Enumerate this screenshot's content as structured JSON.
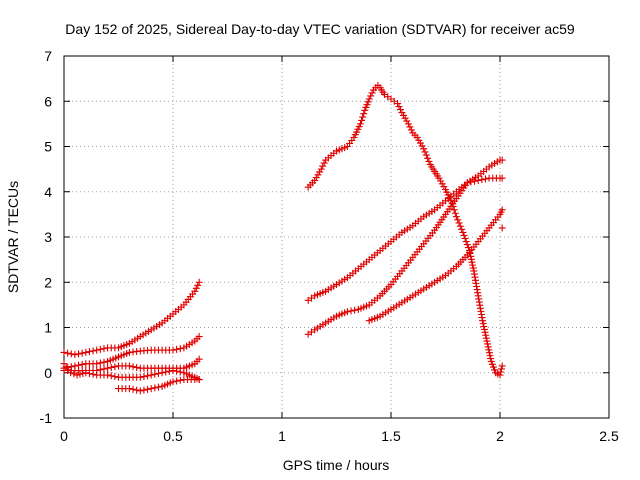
{
  "chart_data": {
    "type": "scatter",
    "title": "Day 152 of 2025, Sidereal Day-to-day VTEC variation (SDTVAR) for receiver ac59",
    "xlabel": "GPS time / hours",
    "ylabel": "SDTVAR / TECUs",
    "xlim": [
      0,
      2.5
    ],
    "ylim": [
      -1,
      7
    ],
    "xticks": [
      0,
      0.5,
      1,
      1.5,
      2,
      2.5
    ],
    "xtick_labels": [
      "0",
      "0.5",
      "1",
      "1.5",
      "2",
      "2.5"
    ],
    "yticks": [
      -1,
      0,
      1,
      2,
      3,
      4,
      5,
      6,
      7
    ],
    "ytick_labels": [
      "-1",
      "0",
      "1",
      "2",
      "3",
      "4",
      "5",
      "6",
      "7"
    ],
    "grid": true,
    "marker": "plus",
    "color": "#e00000",
    "series": [
      {
        "x": [
          0.0,
          0.05,
          0.1,
          0.15,
          0.2,
          0.25,
          0.3,
          0.35,
          0.4,
          0.45,
          0.5,
          0.55,
          0.6,
          0.62
        ],
        "y": [
          0.45,
          0.4,
          0.45,
          0.5,
          0.55,
          0.55,
          0.65,
          0.8,
          0.95,
          1.1,
          1.3,
          1.5,
          1.8,
          2.0
        ]
      },
      {
        "x": [
          0.0,
          0.05,
          0.1,
          0.15,
          0.2,
          0.25,
          0.3,
          0.35,
          0.4,
          0.45,
          0.5,
          0.55,
          0.6,
          0.62
        ],
        "y": [
          0.1,
          0.15,
          0.2,
          0.2,
          0.25,
          0.35,
          0.45,
          0.48,
          0.5,
          0.5,
          0.5,
          0.55,
          0.7,
          0.8
        ]
      },
      {
        "x": [
          0.0,
          0.05,
          0.1,
          0.15,
          0.2,
          0.25,
          0.3,
          0.35,
          0.4,
          0.45,
          0.5,
          0.55,
          0.6,
          0.62
        ],
        "y": [
          0.05,
          0.05,
          0.05,
          0.05,
          0.1,
          0.15,
          0.15,
          0.1,
          0.1,
          0.1,
          0.1,
          0.1,
          0.2,
          0.3
        ]
      },
      {
        "x": [
          0.0,
          0.03,
          0.06,
          0.1,
          0.15,
          0.2,
          0.25,
          0.3,
          0.35,
          0.4,
          0.45,
          0.5,
          0.55,
          0.6,
          0.62
        ],
        "y": [
          0.2,
          0.0,
          -0.05,
          0.0,
          -0.05,
          -0.05,
          -0.1,
          -0.1,
          -0.1,
          -0.05,
          0.0,
          0.05,
          0.0,
          -0.1,
          -0.15
        ]
      },
      {
        "x": [
          0.25,
          0.3,
          0.35,
          0.4,
          0.45,
          0.5,
          0.55,
          0.6,
          0.62
        ],
        "y": [
          -0.35,
          -0.35,
          -0.4,
          -0.35,
          -0.3,
          -0.2,
          -0.15,
          -0.15,
          -0.15
        ]
      },
      {
        "x": [
          1.12,
          1.15,
          1.18,
          1.2,
          1.25,
          1.3,
          1.33,
          1.36,
          1.38,
          1.4,
          1.42,
          1.44,
          1.45,
          1.47,
          1.5,
          1.53,
          1.55,
          1.58,
          1.6,
          1.62,
          1.65,
          1.68,
          1.7,
          1.72,
          1.75,
          1.78,
          1.8,
          1.83,
          1.86,
          1.88,
          1.9,
          1.92,
          1.94,
          1.96,
          1.98,
          2.0,
          2.01
        ],
        "y": [
          4.1,
          4.25,
          4.5,
          4.7,
          4.9,
          5.0,
          5.2,
          5.5,
          5.8,
          6.05,
          6.25,
          6.35,
          6.3,
          6.15,
          6.05,
          5.95,
          5.75,
          5.5,
          5.3,
          5.2,
          4.95,
          4.6,
          4.45,
          4.3,
          4.05,
          3.75,
          3.45,
          3.1,
          2.7,
          2.25,
          1.7,
          1.15,
          0.7,
          0.25,
          0.0,
          -0.05,
          0.15
        ]
      },
      {
        "x": [
          1.12,
          1.15,
          1.2,
          1.25,
          1.3,
          1.35,
          1.4,
          1.45,
          1.5,
          1.55,
          1.6,
          1.65,
          1.7,
          1.75,
          1.8,
          1.85,
          1.9,
          1.95,
          2.0,
          2.01
        ],
        "y": [
          1.6,
          1.7,
          1.8,
          1.95,
          2.1,
          2.3,
          2.5,
          2.7,
          2.9,
          3.1,
          3.25,
          3.45,
          3.6,
          3.8,
          4.0,
          4.2,
          4.35,
          4.55,
          4.7,
          4.7
        ]
      },
      {
        "x": [
          1.12,
          1.15,
          1.2,
          1.25,
          1.3,
          1.35,
          1.4,
          1.45,
          1.5,
          1.55,
          1.6,
          1.65,
          1.7,
          1.75,
          1.8,
          1.85,
          1.9,
          1.95,
          2.0,
          2.01
        ],
        "y": [
          0.85,
          0.95,
          1.1,
          1.25,
          1.35,
          1.4,
          1.5,
          1.7,
          1.95,
          2.25,
          2.55,
          2.85,
          3.15,
          3.5,
          3.85,
          4.2,
          4.25,
          4.3,
          4.3,
          4.3
        ]
      },
      {
        "x": [
          1.4,
          1.45,
          1.5,
          1.55,
          1.6,
          1.65,
          1.7,
          1.75,
          1.8,
          1.85,
          1.9,
          1.95,
          2.0,
          2.01
        ],
        "y": [
          1.15,
          1.25,
          1.4,
          1.55,
          1.7,
          1.85,
          2.0,
          2.15,
          2.35,
          2.6,
          2.9,
          3.2,
          3.5,
          3.6
        ]
      },
      {
        "x": [
          2.01
        ],
        "y": [
          3.2
        ]
      }
    ]
  }
}
